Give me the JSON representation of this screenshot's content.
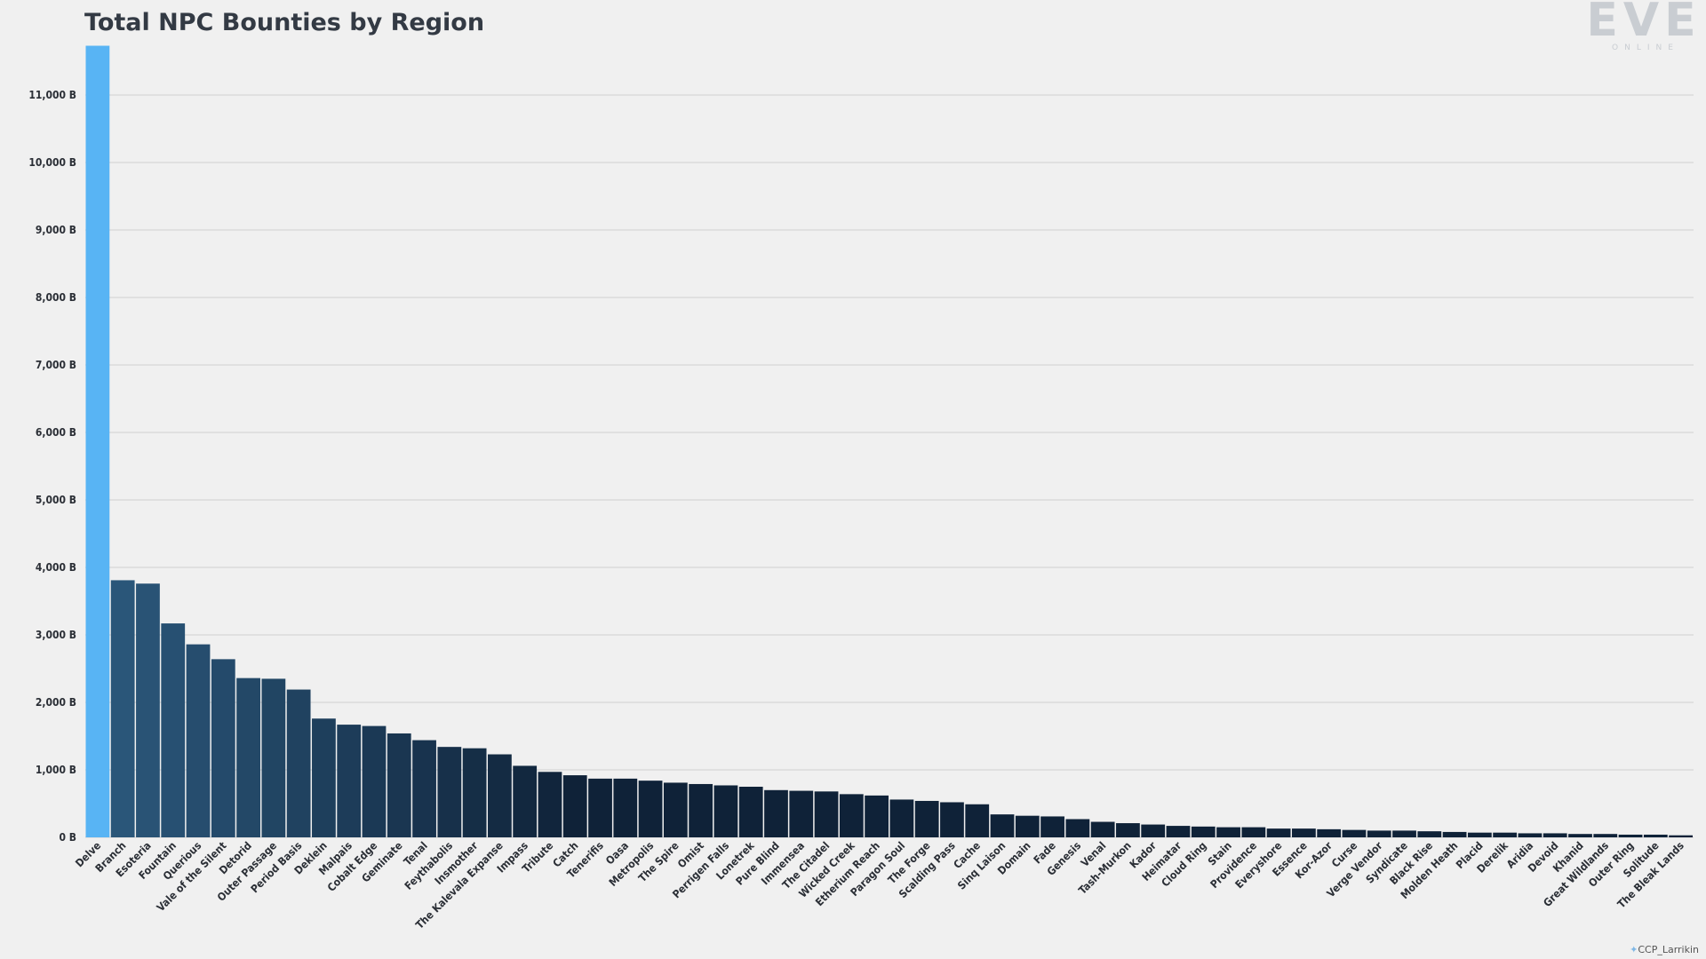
{
  "chart_data": {
    "type": "bar",
    "title": "Total NPC Bounties by Region",
    "xlabel": "",
    "ylabel": "",
    "ylim": [
      0,
      11750
    ],
    "yticks": [
      0,
      1000,
      2000,
      3000,
      4000,
      5000,
      6000,
      7000,
      8000,
      9000,
      10000,
      11000
    ],
    "ytick_labels": [
      "0 B",
      "1,000 B",
      "2,000 B",
      "3,000 B",
      "4,000 B",
      "5,000 B",
      "6,000 B",
      "7,000 B",
      "8,000 B",
      "9,000 B",
      "10,000 B",
      "11,000 B"
    ],
    "grid": true,
    "categories": [
      "Delve",
      "Branch",
      "Esoteria",
      "Fountain",
      "Querious",
      "Vale of the Silent",
      "Detorid",
      "Outer Passage",
      "Period Basis",
      "Deklein",
      "Malpais",
      "Cobalt Edge",
      "Geminate",
      "Tenal",
      "Feythabolis",
      "Insmother",
      "The Kalevala Expanse",
      "Impass",
      "Tribute",
      "Catch",
      "Tenerifis",
      "Oasa",
      "Metropolis",
      "The Spire",
      "Omist",
      "Perrigen Falls",
      "Lonetrek",
      "Pure Blind",
      "Immensea",
      "The Citadel",
      "Wicked Creek",
      "Etherium Reach",
      "Paragon Soul",
      "The Forge",
      "Scalding Pass",
      "Cache",
      "Sinq Laison",
      "Domain",
      "Fade",
      "Genesis",
      "Venal",
      "Tash-Murkon",
      "Kador",
      "Heimatar",
      "Cloud Ring",
      "Stain",
      "Providence",
      "Everyshore",
      "Essence",
      "Kor-Azor",
      "Curse",
      "Verge Vendor",
      "Syndicate",
      "Black Rise",
      "Molden Heath",
      "Placid",
      "Derelik",
      "Aridia",
      "Devoid",
      "Khanid",
      "Great Wildlands",
      "Outer Ring",
      "Solitude",
      "The Bleak Lands"
    ],
    "values": [
      11730,
      3810,
      3760,
      3170,
      2860,
      2640,
      2360,
      2350,
      2190,
      1760,
      1670,
      1650,
      1540,
      1440,
      1340,
      1320,
      1230,
      1060,
      970,
      920,
      870,
      870,
      840,
      810,
      790,
      770,
      750,
      700,
      690,
      680,
      640,
      620,
      560,
      540,
      520,
      490,
      340,
      320,
      310,
      270,
      230,
      210,
      190,
      170,
      160,
      150,
      150,
      130,
      130,
      120,
      110,
      100,
      100,
      90,
      80,
      70,
      70,
      60,
      60,
      50,
      50,
      40,
      40,
      30
    ],
    "highlight": {
      "category": "Delve",
      "color": "#58b4f4"
    },
    "bar_color_start": "#2a5679",
    "bar_color_end": "#0f2238"
  },
  "logo": {
    "wordmark": "EVE",
    "sub": "ONLINE"
  },
  "credit": "CCP_Larrikin"
}
